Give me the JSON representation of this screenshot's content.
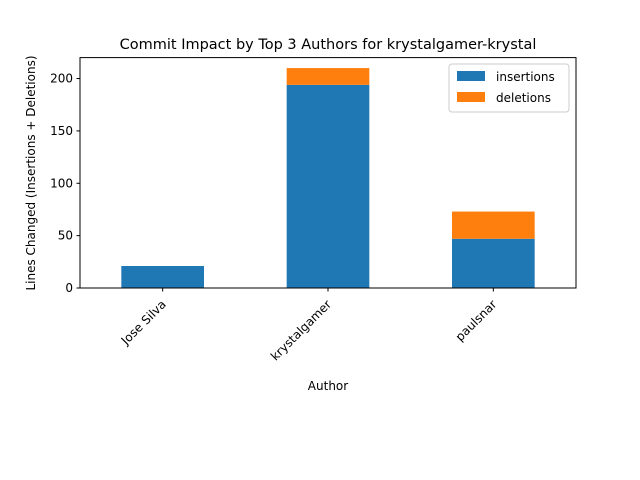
{
  "chart_data": {
    "type": "bar",
    "stacked": true,
    "title": "Commit Impact by Top 3 Authors for krystalgamer-krystal",
    "xlabel": "Author",
    "ylabel": "Lines Changed (Insertions + Deletions)",
    "categories": [
      "Jose Silva",
      "krystalgamer",
      "paulsnar"
    ],
    "series": [
      {
        "name": "insertions",
        "values": [
          21,
          194,
          47
        ],
        "color": "#1f77b4"
      },
      {
        "name": "deletions",
        "values": [
          0,
          16,
          26
        ],
        "color": "#ff7f0e"
      }
    ],
    "ylim": [
      0,
      220
    ],
    "yticks": [
      0,
      50,
      100,
      150,
      200
    ],
    "grid": false,
    "legend": "top-right"
  }
}
